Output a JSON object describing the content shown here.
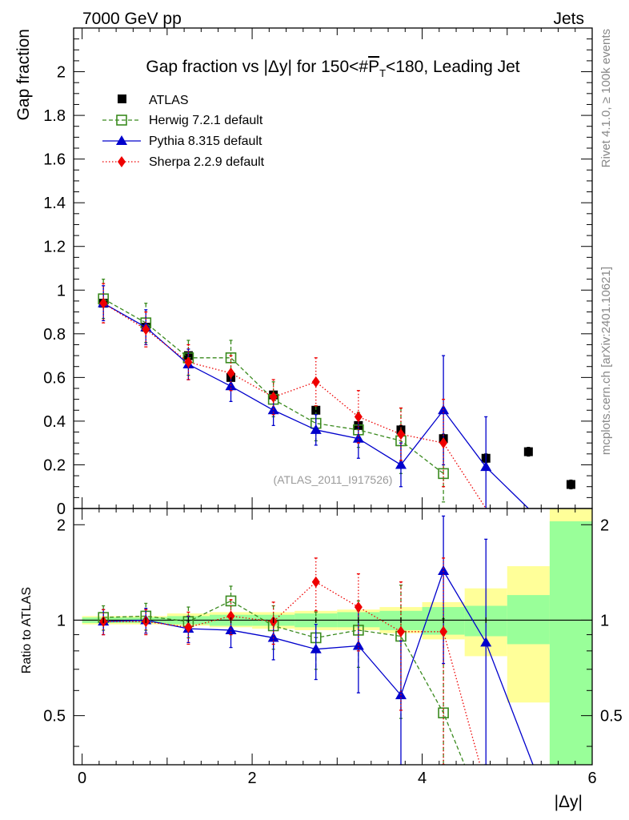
{
  "header": {
    "left": "7000 GeV pp",
    "right": "Jets",
    "side_top": "Rivet 4.1.0, ≥ 100k events",
    "side_bottom": "mcplots.cern.ch [arXiv:2401.10621]"
  },
  "colors": {
    "atlas": "#000000",
    "herwig": "#3a8a1e",
    "pythia": "#0000cc",
    "sherpa": "#ee0000",
    "band_inner": "#99ff99",
    "band_outer": "#ffff99"
  },
  "chart_data": {
    "type": "scatter",
    "title_prefix": "Gap fraction vs |Δy| for 150<#",
    "title_p": "P",
    "title_sub": "T",
    "title_suffix": "<180, Leading Jet",
    "watermark": "(ATLAS_2011_I917526)",
    "xlabel": "|Δy|",
    "ylabel_top": "Gap fraction",
    "ylabel_bottom": "Ratio to ATLAS",
    "xlim": [
      -0.1,
      6.0
    ],
    "ylim_top": [
      0,
      2.2
    ],
    "ylim_bottom": [
      0.35,
      2.25
    ],
    "x_ticks": [
      "0",
      "2",
      "4",
      "6"
    ],
    "y_ticks_top": [
      "0",
      "0.2",
      "0.4",
      "0.6",
      "0.8",
      "1",
      "1.2",
      "1.4",
      "1.6",
      "1.8",
      "2"
    ],
    "y_ticks_bottom": [
      "0.5",
      "1",
      "2"
    ],
    "x": [
      0.25,
      0.75,
      1.25,
      1.75,
      2.25,
      2.75,
      3.25,
      3.75,
      4.25,
      4.75,
      5.25,
      5.75
    ],
    "series": [
      {
        "name": "ATLAS",
        "key": "atlas",
        "values": [
          0.94,
          0.83,
          0.7,
          0.6,
          0.52,
          0.45,
          0.38,
          0.36,
          0.32,
          0.23,
          0.26,
          0.11
        ],
        "errors": [
          0.01,
          0.01,
          0.01,
          0.01,
          0.01,
          0.01,
          0.01,
          0.02,
          0.02,
          0.02,
          0.02,
          0.02
        ]
      },
      {
        "name": "Herwig 7.2.1 default",
        "key": "herwig",
        "values": [
          0.96,
          0.85,
          0.69,
          0.69,
          0.5,
          0.39,
          0.36,
          0.31,
          0.16
        ],
        "errors": [
          0.09,
          0.09,
          0.08,
          0.08,
          0.08,
          0.08,
          0.08,
          0.15,
          0.13
        ]
      },
      {
        "name": "Pythia 8.315 default",
        "key": "pythia",
        "values": [
          0.94,
          0.83,
          0.66,
          0.56,
          0.45,
          0.36,
          0.32,
          0.2,
          0.45,
          0.19,
          0.0
        ],
        "errors": [
          0.08,
          0.08,
          0.07,
          0.07,
          0.07,
          0.07,
          0.09,
          0.1,
          0.25,
          0.23,
          0.0
        ]
      },
      {
        "name": "Sherpa 2.2.9 default",
        "key": "sherpa",
        "values": [
          0.94,
          0.82,
          0.67,
          0.62,
          0.51,
          0.58,
          0.42,
          0.34,
          0.3,
          0.0
        ],
        "errors": [
          0.09,
          0.08,
          0.08,
          0.08,
          0.08,
          0.11,
          0.12,
          0.12,
          0.2,
          0.0
        ]
      }
    ],
    "ratio_series": [
      {
        "key": "herwig",
        "values": [
          1.02,
          1.03,
          0.99,
          1.15,
          0.96,
          0.88,
          0.93,
          0.89,
          0.51
        ],
        "errors": [
          0.09,
          0.1,
          0.11,
          0.13,
          0.15,
          0.18,
          0.22,
          0.4,
          0.5
        ],
        "extend_to": [
          4.6,
          0.3
        ]
      },
      {
        "key": "pythia",
        "values": [
          0.99,
          1.0,
          0.94,
          0.93,
          0.88,
          0.81,
          0.83,
          0.58,
          1.43,
          0.85
        ],
        "errors": [
          0.09,
          0.09,
          0.09,
          0.11,
          0.13,
          0.16,
          0.24,
          0.28,
          0.7,
          0.95
        ],
        "extend_to": [
          5.4,
          0.3
        ]
      },
      {
        "key": "sherpa",
        "values": [
          0.99,
          0.99,
          0.95,
          1.03,
          0.99,
          1.32,
          1.1,
          0.92,
          0.92
        ],
        "errors": [
          0.09,
          0.09,
          0.11,
          0.13,
          0.15,
          0.25,
          0.3,
          0.4,
          0.65
        ],
        "extend_to": [
          4.75,
          0.3
        ]
      }
    ],
    "band_inner": [
      [
        0.0,
        0.5,
        0.98,
        1.02
      ],
      [
        0.5,
        1.0,
        0.98,
        1.02
      ],
      [
        1.0,
        1.5,
        0.97,
        1.03
      ],
      [
        1.5,
        2.0,
        0.96,
        1.04
      ],
      [
        2.0,
        2.5,
        0.96,
        1.04
      ],
      [
        2.5,
        3.0,
        0.95,
        1.05
      ],
      [
        3.0,
        3.5,
        0.95,
        1.06
      ],
      [
        3.5,
        4.0,
        0.93,
        1.07
      ],
      [
        4.0,
        4.5,
        0.9,
        1.1
      ],
      [
        4.5,
        5.0,
        0.89,
        1.11
      ],
      [
        5.0,
        5.5,
        0.84,
        1.2
      ],
      [
        5.5,
        6.0,
        0.35,
        2.05
      ]
    ],
    "band_outer": [
      [
        0.0,
        0.5,
        0.97,
        1.03
      ],
      [
        0.5,
        1.0,
        0.97,
        1.03
      ],
      [
        1.0,
        1.5,
        0.96,
        1.05
      ],
      [
        1.5,
        2.0,
        0.95,
        1.06
      ],
      [
        2.0,
        2.5,
        0.94,
        1.06
      ],
      [
        2.5,
        3.0,
        0.93,
        1.07
      ],
      [
        3.0,
        3.5,
        0.93,
        1.08
      ],
      [
        3.5,
        4.0,
        0.91,
        1.1
      ],
      [
        4.0,
        4.5,
        0.87,
        1.14
      ],
      [
        4.5,
        5.0,
        0.77,
        1.26
      ],
      [
        5.0,
        5.5,
        0.55,
        1.48
      ],
      [
        5.5,
        6.0,
        0.35,
        2.25
      ]
    ]
  }
}
